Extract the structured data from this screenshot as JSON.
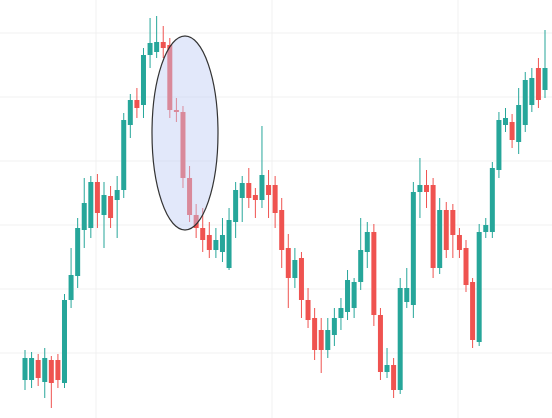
{
  "chart_data": {
    "type": "candlestick",
    "ylim": [
      0,
      418
    ],
    "yticks": [
      65,
      129,
      193,
      257,
      321,
      385
    ],
    "grid": true,
    "up_color": "#26a69a",
    "down_color": "#ef5350",
    "open": [
      38,
      38,
      58,
      36,
      58,
      58,
      35,
      118,
      142,
      188,
      190,
      236,
      203,
      222,
      218,
      228,
      293,
      318,
      313,
      363,
      366,
      376,
      373,
      308,
      306,
      240,
      203,
      190,
      183,
      168,
      166,
      150,
      196,
      220,
      235,
      223,
      218,
      233,
      233,
      208,
      170,
      140,
      160,
      118,
      100,
      88,
      68,
      83,
      100,
      106,
      110,
      136,
      166,
      186,
      103,
      46,
      53,
      28,
      116,
      113,
      226,
      233,
      233,
      150,
      208,
      208,
      183,
      170,
      136,
      76,
      186,
      186,
      248,
      293,
      296,
      276,
      293,
      313,
      350,
      328
    ],
    "high": [
      68,
      66,
      64,
      70,
      62,
      64,
      124,
      170,
      200,
      240,
      242,
      244,
      236,
      232,
      242,
      305,
      324,
      330,
      370,
      400,
      402,
      392,
      380,
      320,
      312,
      252,
      214,
      210,
      196,
      190,
      200,
      210,
      236,
      242,
      250,
      230,
      292,
      248,
      242,
      220,
      184,
      170,
      166,
      130,
      110,
      100,
      100,
      110,
      120,
      148,
      140,
      200,
      196,
      194,
      110,
      70,
      60,
      140,
      150,
      236,
      260,
      248,
      240,
      220,
      216,
      214,
      190,
      178,
      140,
      194,
      200,
      256,
      306,
      310,
      304,
      330,
      346,
      350,
      360,
      388
    ],
    "low": [
      28,
      30,
      32,
      20,
      10,
      30,
      30,
      110,
      130,
      170,
      180,
      190,
      170,
      190,
      180,
      220,
      280,
      300,
      300,
      350,
      360,
      360,
      300,
      296,
      230,
      196,
      180,
      166,
      160,
      160,
      156,
      148,
      180,
      196,
      210,
      200,
      210,
      200,
      190,
      150,
      110,
      130,
      100,
      90,
      58,
      45,
      60,
      72,
      88,
      98,
      100,
      128,
      150,
      92,
      38,
      40,
      20,
      24,
      110,
      100,
      200,
      210,
      140,
      144,
      160,
      160,
      160,
      126,
      70,
      72,
      180,
      180,
      240,
      286,
      270,
      264,
      286,
      306,
      310,
      320
    ],
    "close": [
      60,
      60,
      40,
      60,
      35,
      38,
      118,
      143,
      190,
      215,
      236,
      205,
      223,
      200,
      228,
      298,
      318,
      310,
      363,
      375,
      376,
      370,
      308,
      306,
      240,
      203,
      190,
      178,
      168,
      178,
      183,
      198,
      228,
      235,
      220,
      218,
      243,
      223,
      205,
      168,
      140,
      158,
      118,
      98,
      68,
      68,
      88,
      100,
      110,
      138,
      136,
      168,
      186,
      103,
      46,
      53,
      28,
      130,
      130,
      226,
      233,
      226,
      150,
      208,
      168,
      183,
      168,
      133,
      78,
      186,
      193,
      250,
      298,
      300,
      278,
      313,
      338,
      340,
      318,
      350
    ]
  }
}
